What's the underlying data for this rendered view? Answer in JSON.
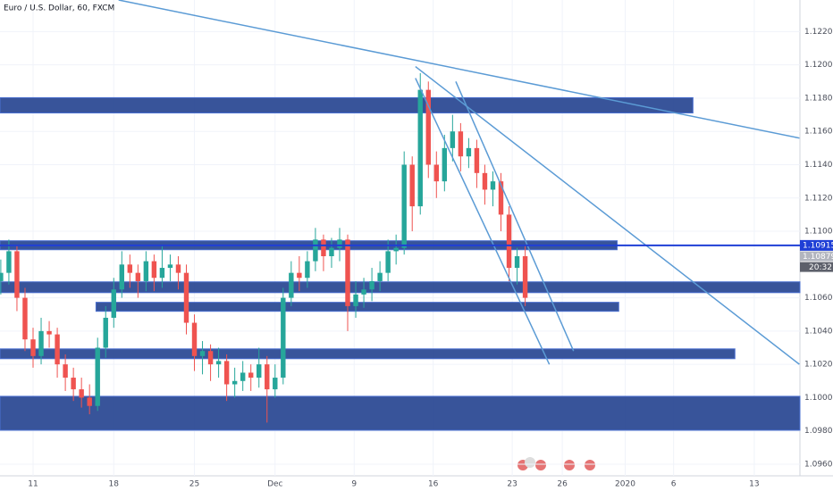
{
  "chart_data": {
    "type": "candlestick",
    "title": "Euro / U.S. Dollar, 60, FXCM",
    "x": [
      -2,
      -1.5,
      -1,
      -0.5,
      0,
      0.5,
      1,
      1.5,
      2,
      2.5,
      3,
      3.5,
      4,
      4.5,
      5,
      5.5,
      6,
      6.5,
      7,
      7.5,
      8,
      8.5,
      9,
      9.5,
      10,
      10.5,
      11,
      11.5,
      12,
      12.5,
      13,
      13.5,
      14,
      14.5,
      15,
      15.5,
      16,
      16.5,
      17,
      17.5,
      18,
      18.5,
      19,
      19.5,
      20,
      20.5,
      21,
      21.5,
      22,
      22.5,
      23,
      23.5,
      24,
      24.5,
      25,
      25.5,
      26,
      26.5,
      27,
      27.5,
      28,
      28.5,
      29,
      29.5,
      30,
      30.5
    ],
    "open": [
      1.107,
      1.1075,
      1.1088,
      1.106,
      1.1035,
      1.1025,
      1.104,
      1.1038,
      1.102,
      1.1012,
      1.1005,
      1.1,
      1.0995,
      1.103,
      1.1048,
      1.1065,
      1.108,
      1.1075,
      1.107,
      1.1082,
      1.1072,
      1.1078,
      1.108,
      1.1075,
      1.1045,
      1.1025,
      1.1028,
      1.102,
      1.1022,
      1.1008,
      1.101,
      1.1015,
      1.1012,
      1.102,
      1.1005,
      1.1012,
      1.106,
      1.1075,
      1.1072,
      1.1082,
      1.1095,
      1.1085,
      1.109,
      1.1095,
      1.1055,
      1.1062,
      1.1065,
      1.107,
      1.1075,
      1.1088,
      1.109,
      1.114,
      1.1115,
      1.1185,
      1.114,
      1.113,
      1.115,
      1.116,
      1.1145,
      1.115,
      1.1135,
      1.1125,
      1.113,
      1.111,
      1.1078,
      1.1085
    ],
    "high": [
      1.1083,
      1.1095,
      1.1092,
      1.1066,
      1.1042,
      1.1048,
      1.1046,
      1.1042,
      1.1026,
      1.1018,
      1.1012,
      1.1008,
      1.1036,
      1.1055,
      1.1072,
      1.1088,
      1.1086,
      1.108,
      1.1088,
      1.1086,
      1.1092,
      1.1086,
      1.1085,
      1.108,
      1.105,
      1.1034,
      1.1032,
      1.103,
      1.1026,
      1.1018,
      1.1022,
      1.102,
      1.103,
      1.1025,
      1.102,
      1.1066,
      1.1082,
      1.1085,
      1.1088,
      1.1102,
      1.1098,
      1.1096,
      1.1102,
      1.1098,
      1.107,
      1.1072,
      1.1078,
      1.1082,
      1.1095,
      1.1098,
      1.1148,
      1.1145,
      1.1195,
      1.119,
      1.1148,
      1.1158,
      1.117,
      1.1165,
      1.1156,
      1.1155,
      1.114,
      1.1136,
      1.1135,
      1.1115,
      1.109,
      1.1092
    ],
    "low": [
      1.1062,
      1.1068,
      1.1052,
      1.1028,
      1.1018,
      1.102,
      1.103,
      1.1012,
      1.1004,
      1.0998,
      1.0994,
      1.099,
      1.0992,
      1.1024,
      1.1042,
      1.106,
      1.1066,
      1.106,
      1.1064,
      1.1064,
      1.1066,
      1.107,
      1.1065,
      1.1038,
      1.1016,
      1.1014,
      1.101,
      1.1012,
      1.0998,
      1.1,
      1.1004,
      1.1004,
      1.1006,
      1.0985,
      1.1,
      1.1008,
      1.1055,
      1.1064,
      1.1066,
      1.1076,
      1.1076,
      1.1078,
      1.1082,
      1.104,
      1.1048,
      1.1054,
      1.1058,
      1.1064,
      1.107,
      1.108,
      1.1086,
      1.11,
      1.111,
      1.1132,
      1.112,
      1.1124,
      1.1142,
      1.1136,
      1.1138,
      1.1126,
      1.1116,
      1.1115,
      1.11,
      1.107,
      1.1068,
      1.1055
    ],
    "close": [
      1.1075,
      1.1088,
      1.106,
      1.1035,
      1.1025,
      1.104,
      1.1038,
      1.102,
      1.1012,
      1.1005,
      1.1,
      1.0995,
      1.103,
      1.1048,
      1.1065,
      1.108,
      1.1075,
      1.107,
      1.1082,
      1.1072,
      1.1078,
      1.108,
      1.1075,
      1.1045,
      1.1025,
      1.1028,
      1.102,
      1.1022,
      1.1008,
      1.101,
      1.1015,
      1.1012,
      1.102,
      1.1005,
      1.1012,
      1.106,
      1.1075,
      1.1072,
      1.1082,
      1.1095,
      1.1085,
      1.109,
      1.1095,
      1.1055,
      1.1062,
      1.1065,
      1.107,
      1.1075,
      1.1088,
      1.109,
      1.114,
      1.1115,
      1.1185,
      1.114,
      1.113,
      1.115,
      1.116,
      1.1145,
      1.115,
      1.1135,
      1.1125,
      1.113,
      1.111,
      1.1078,
      1.1085,
      1.106
    ],
    "up_color": "#26a69a",
    "down_color": "#ef5350",
    "xlim": [
      -2.05,
      47.53
    ],
    "ylim": [
      1.0953,
      1.1239
    ],
    "xticks": [
      {
        "value": 0,
        "label": "11"
      },
      {
        "value": 5.0,
        "label": "18"
      },
      {
        "value": 10.0,
        "label": "25"
      },
      {
        "value": 15.0,
        "label": "Dec"
      },
      {
        "value": 19.9,
        "label": "9"
      },
      {
        "value": 24.8,
        "label": "16"
      },
      {
        "value": 29.7,
        "label": "23"
      },
      {
        "value": 32.8,
        "label": "26"
      },
      {
        "value": 36.7,
        "label": "2020"
      },
      {
        "value": 39.7,
        "label": "6"
      },
      {
        "value": 44.7,
        "label": "13"
      }
    ],
    "yticks": [
      {
        "value": 1.122,
        "label": "1.12200"
      },
      {
        "value": 1.12,
        "label": "1.12000"
      },
      {
        "value": 1.118,
        "label": "1.11800"
      },
      {
        "value": 1.116,
        "label": "1.11600"
      },
      {
        "value": 1.114,
        "label": "1.11400"
      },
      {
        "value": 1.112,
        "label": "1.11200"
      },
      {
        "value": 1.11,
        "label": "1.11000"
      },
      {
        "value": 1.106,
        "label": "1.10600"
      },
      {
        "value": 1.104,
        "label": "1.10400"
      },
      {
        "value": 1.102,
        "label": "1.10200"
      },
      {
        "value": 1.1,
        "label": "1.10000"
      },
      {
        "value": 1.098,
        "label": "1.09800"
      },
      {
        "value": 1.096,
        "label": "1.09600"
      }
    ],
    "grid": true,
    "zones": [
      {
        "x1": -2.05,
        "x2": 40.9,
        "y1": 1.11803,
        "y2": 1.11711
      },
      {
        "x1": -2.05,
        "x2": 36.2,
        "y1": 1.10943,
        "y2": 1.10889
      },
      {
        "x1": -2.05,
        "x2": 47.53,
        "y1": 1.10696,
        "y2": 1.10631
      },
      {
        "x1": 3.9,
        "x2": 36.3,
        "y1": 1.10573,
        "y2": 1.10519
      },
      {
        "x1": -2.05,
        "x2": 43.5,
        "y1": 1.10293,
        "y2": 1.10234
      },
      {
        "x1": -2.05,
        "x2": 47.53,
        "y1": 1.10008,
        "y2": 1.09804
      }
    ],
    "zone_color": "#1c3c8c",
    "trendlines": [
      {
        "x1": 5.3,
        "y1": 1.1239,
        "x2": 47.5,
        "y2": 1.1156
      },
      {
        "x1": 23.7,
        "y1": 1.1199,
        "x2": 47.5,
        "y2": 1.102
      },
      {
        "x1": 23.7,
        "y1": 1.1192,
        "x2": 32.0,
        "y2": 1.102
      },
      {
        "x1": 26.2,
        "y1": 1.119,
        "x2": 33.5,
        "y2": 1.1028
      }
    ],
    "trendline_color": "#5b9bd5",
    "hline": {
      "value": 1.10915,
      "label": "1.10915",
      "color": "#1f3fd6"
    },
    "last_price": {
      "value": 1.10879,
      "label": "1.10879",
      "color": "#b2b5be"
    },
    "countdown": "20:32"
  }
}
